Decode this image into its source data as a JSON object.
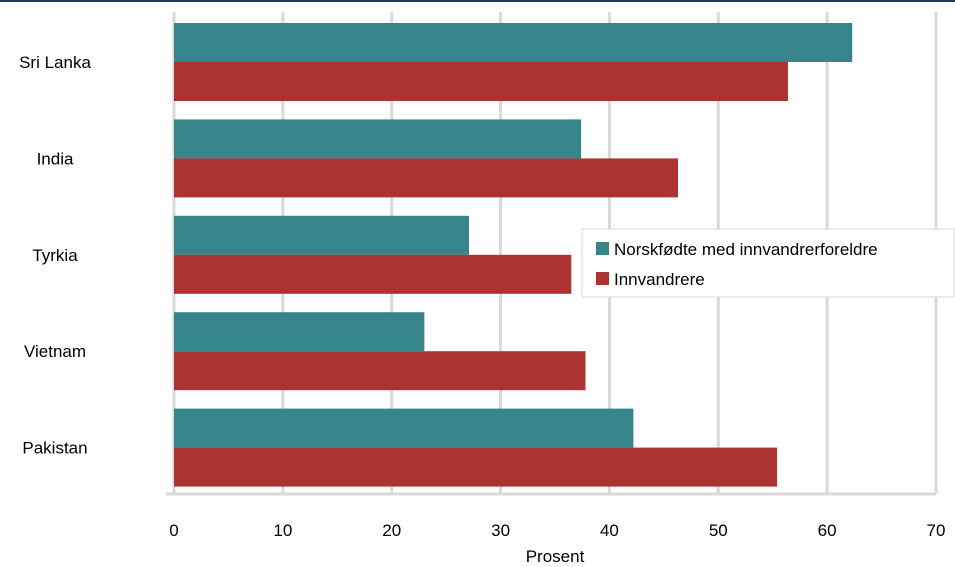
{
  "chart_data": {
    "type": "bar",
    "orientation": "horizontal",
    "categories": [
      "Sri Lanka",
      "India",
      "Tyrkia",
      "Vietnam",
      "Pakistan"
    ],
    "series": [
      {
        "name": "Norskfødte med innvandrerforeldre",
        "color": "#35858a",
        "values": [
          62.3,
          37.4,
          27.1,
          23.0,
          42.2
        ]
      },
      {
        "name": "Innvandrere",
        "color": "#ad3333",
        "values": [
          56.4,
          46.3,
          36.5,
          37.8,
          55.4
        ]
      }
    ],
    "xlabel": "Prosent",
    "xlim": [
      0,
      70
    ],
    "xticks": [
      "0",
      "10",
      "20",
      "30",
      "40",
      "50",
      "60",
      "70"
    ],
    "grid": true,
    "gridline_color": "#d9d9d9",
    "legend_position": "right"
  }
}
